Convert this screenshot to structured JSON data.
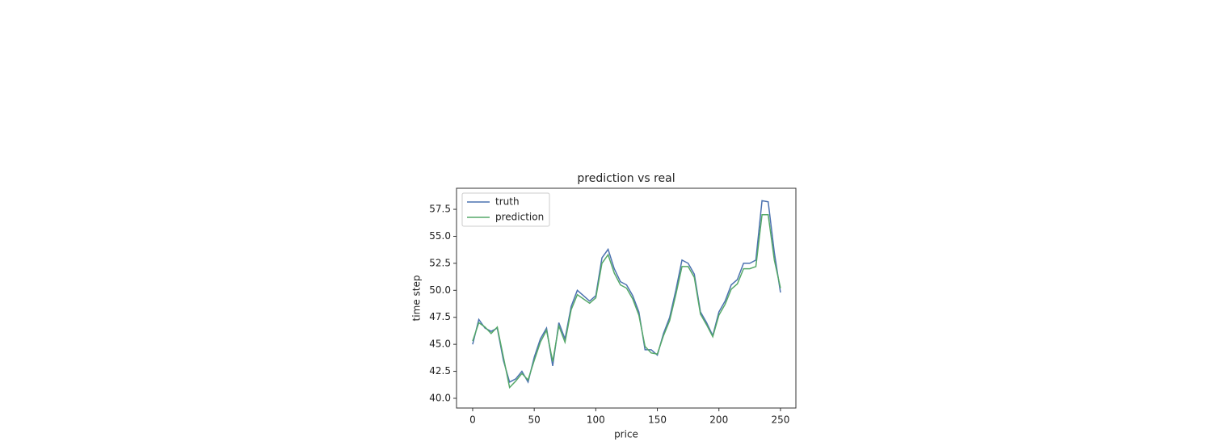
{
  "chart_data": {
    "type": "line",
    "title": "prediction vs real",
    "x_label": "price",
    "y_label": "time step",
    "x": [
      0,
      5,
      10,
      15,
      20,
      25,
      30,
      35,
      40,
      45,
      50,
      55,
      60,
      65,
      70,
      75,
      80,
      85,
      90,
      95,
      100,
      105,
      110,
      115,
      120,
      125,
      130,
      135,
      140,
      145,
      150,
      155,
      160,
      165,
      170,
      175,
      180,
      185,
      190,
      195,
      200,
      205,
      210,
      215,
      220,
      225,
      230,
      235,
      240,
      245,
      250
    ],
    "series": [
      {
        "name": "truth",
        "color": "#4c72b0",
        "values": [
          45.0,
          47.3,
          46.5,
          46.2,
          46.5,
          43.5,
          41.5,
          41.8,
          42.5,
          41.5,
          43.8,
          45.5,
          46.5,
          43.0,
          47.0,
          45.5,
          48.5,
          50.0,
          49.5,
          49.0,
          49.5,
          53.0,
          53.8,
          52.0,
          50.8,
          50.5,
          49.5,
          48.0,
          44.5,
          44.5,
          44.0,
          46.0,
          47.5,
          50.0,
          52.8,
          52.5,
          51.5,
          48.0,
          47.0,
          45.8,
          48.0,
          49.0,
          50.5,
          51.0,
          52.5,
          52.5,
          52.8,
          58.3,
          58.2,
          53.5,
          49.8
        ]
      },
      {
        "name": "prediction",
        "color": "#55a868",
        "values": [
          45.3,
          47.0,
          46.6,
          46.0,
          46.6,
          43.8,
          41.0,
          41.6,
          42.3,
          41.7,
          43.5,
          45.2,
          46.3,
          43.4,
          46.7,
          45.2,
          48.2,
          49.6,
          49.2,
          48.8,
          49.3,
          52.5,
          53.3,
          51.6,
          50.5,
          50.2,
          49.2,
          47.7,
          44.8,
          44.2,
          44.1,
          45.8,
          47.2,
          49.6,
          52.2,
          52.2,
          51.2,
          47.8,
          46.8,
          45.7,
          47.7,
          48.7,
          50.1,
          50.6,
          52.0,
          52.0,
          52.2,
          57.0,
          57.0,
          52.8,
          50.2
        ]
      }
    ],
    "xlim": [
      -13.1,
      262.5
    ],
    "ylim": [
      39.1,
      59.45
    ],
    "xticks": [
      0,
      50,
      100,
      150,
      200,
      250
    ],
    "yticks": [
      {
        "value": 40,
        "label": "40.0"
      },
      {
        "value": 42.5,
        "label": "42.5"
      },
      {
        "value": 45,
        "label": "45.0"
      },
      {
        "value": 47.5,
        "label": "47.5"
      },
      {
        "value": 50,
        "label": "50.0"
      },
      {
        "value": 52.5,
        "label": "52.5"
      },
      {
        "value": 55,
        "label": "55.0"
      },
      {
        "value": 57.5,
        "label": "57.5"
      }
    ],
    "legend": "upper left",
    "grid": false
  }
}
